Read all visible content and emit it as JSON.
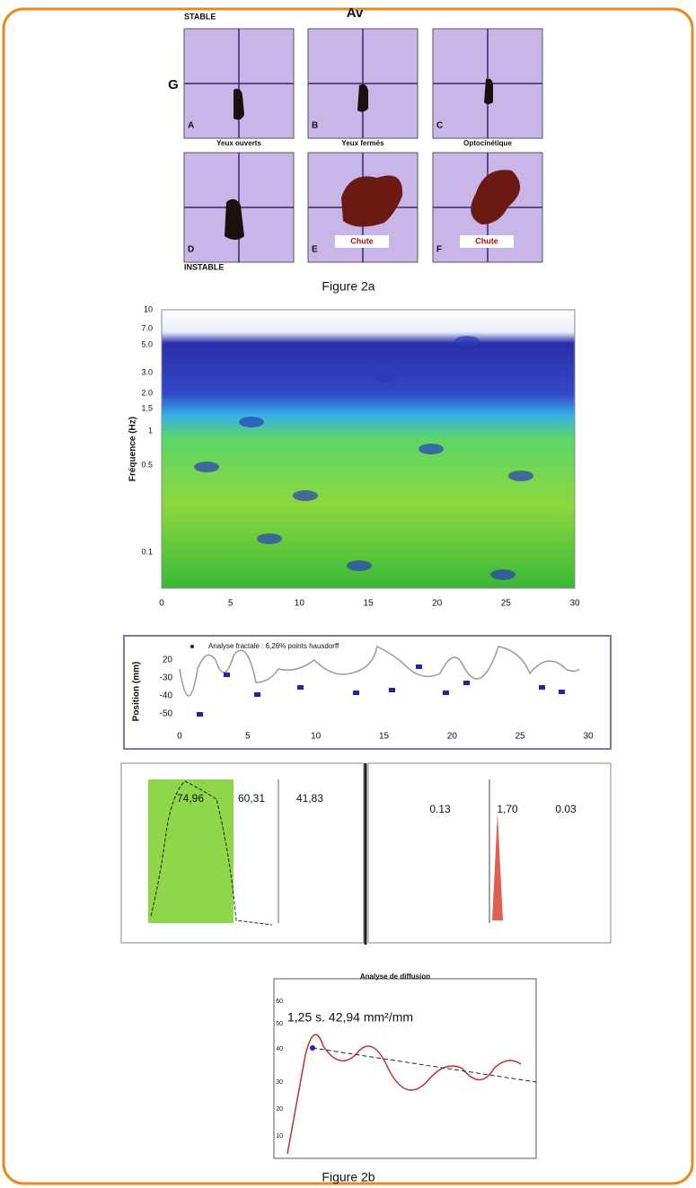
{
  "figure_2a": {
    "stable": "STABLE",
    "av": "Av",
    "g": "G",
    "instable": "INSTABLE",
    "caption": "Figure 2a",
    "panels": [
      {
        "letter": "A",
        "label": "Yeux ouverts"
      },
      {
        "letter": "B",
        "label": "Yeux fermés"
      },
      {
        "letter": "C",
        "label": "Optocinétique"
      },
      {
        "letter": "D"
      },
      {
        "letter": "E",
        "tag": "Chute"
      },
      {
        "letter": "F",
        "tag": "Chute"
      }
    ]
  },
  "wavelet": {
    "y_label": "Fréquence (Hz)",
    "y_ticks": [
      "10",
      "7.0",
      "5.0",
      "3.0",
      "2.0",
      "1.5",
      "1",
      "0.5",
      "0.1"
    ],
    "x_ticks": [
      "0",
      "5",
      "10",
      "15",
      "20",
      "25",
      "30"
    ]
  },
  "position": {
    "legend": "Analyse fractale : 6,26% points hausdorff",
    "y_label": "Position (mm)",
    "y_ticks": [
      "20",
      "-30",
      "-40",
      "-50"
    ],
    "x_ticks": [
      "0",
      "5",
      "10",
      "15",
      "20",
      "25",
      "30"
    ]
  },
  "spectra": {
    "left_values": [
      "74,96",
      "60,31",
      "41,83"
    ],
    "right_values": [
      "0.13",
      "1,70",
      "0.03"
    ]
  },
  "diffusion": {
    "title": "Analyse de diffusion",
    "annotation": "1,25 s.   42,94 mm²/mm",
    "y_ticks": [
      "60",
      "50",
      "40",
      "30",
      "20",
      "10"
    ]
  },
  "caption": "Figure 2b"
}
